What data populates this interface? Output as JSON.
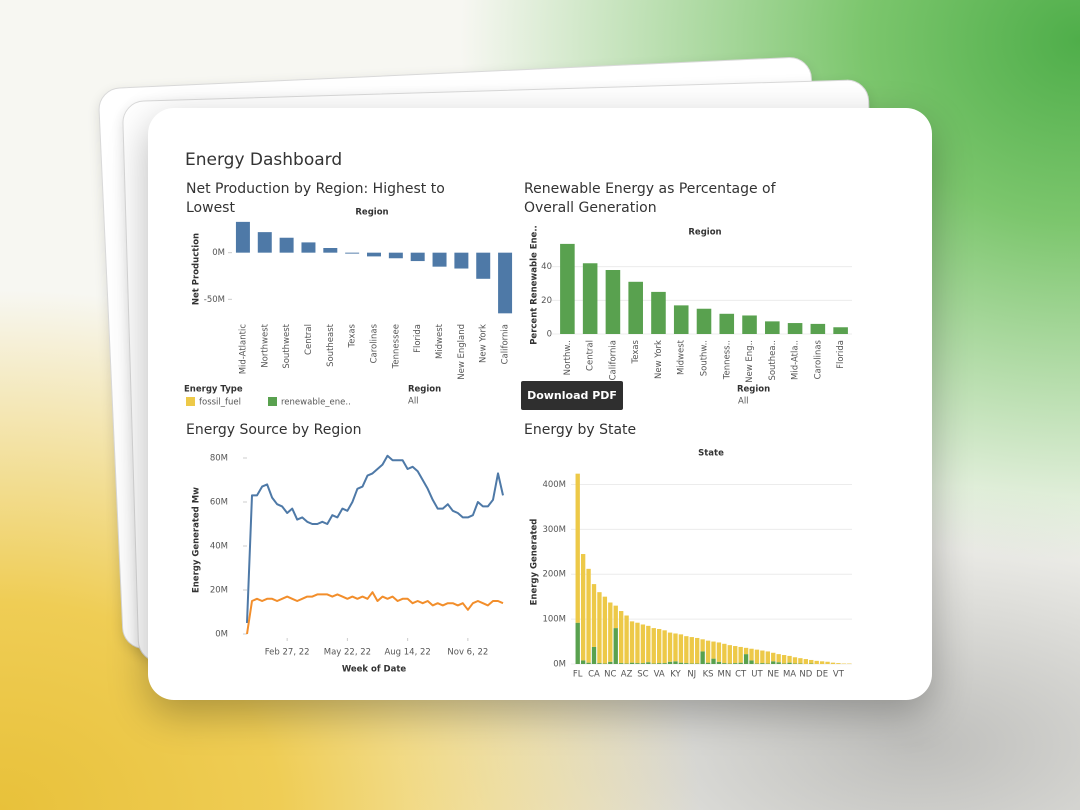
{
  "header": {
    "title": "Energy Dashboard"
  },
  "filters": [
    {
      "label": "Region",
      "value": "All"
    },
    {
      "label": "Region",
      "value": "All"
    }
  ],
  "button": {
    "label": "Download PDF"
  },
  "chart_data": [
    {
      "type": "bar",
      "title": "Net Production by Region: Highest to Lowest",
      "x_label": "Region",
      "y_label": "Net Production",
      "categories": [
        "Mid-Atlantic",
        "Northwest",
        "Southwest",
        "Central",
        "Southeast",
        "Texas",
        "Carolinas",
        "Tennessee",
        "Florida",
        "Midwest",
        "New England",
        "New York",
        "California"
      ],
      "values": [
        33000000,
        22000000,
        16000000,
        11000000,
        5000000,
        -1000000,
        -4000000,
        -6000000,
        -9000000,
        -15000000,
        -17000000,
        -28000000,
        -65000000
      ],
      "color": "#4e79a7",
      "ylim": [
        -70000000,
        35000000
      ],
      "yticks": [
        {
          "value": 0,
          "label": "0M"
        },
        {
          "value": -50000000,
          "label": "-50M"
        }
      ],
      "grid": false
    },
    {
      "type": "bar",
      "title": "Renewable Energy as Percentage of Overall Generation",
      "x_label": "Region",
      "y_label": "Percent Renewable Ene..",
      "categories": [
        "Northw..",
        "Central",
        "California",
        "Texas",
        "New York",
        "Midwest",
        "Southw..",
        "Tenness..",
        "New Eng..",
        "Southea..",
        "Mid-Atla..",
        "Carolinas",
        "Florida"
      ],
      "values": [
        53.5,
        42,
        38,
        31,
        25,
        17,
        15,
        12,
        11,
        7.5,
        6.5,
        6,
        4
      ],
      "color": "#59a14f",
      "ylim": [
        0,
        57
      ],
      "yticks": [
        0,
        20,
        40
      ],
      "grid": true
    },
    {
      "type": "line",
      "title": "Energy Source by Region",
      "x_label": "Week of Date",
      "y_label": "Energy Generated Mw",
      "x": [
        "2022-01-02",
        "2022-01-09",
        "2022-01-16",
        "2022-01-23",
        "2022-01-30",
        "2022-02-06",
        "2022-02-13",
        "2022-02-20",
        "2022-02-27",
        "2022-03-06",
        "2022-03-13",
        "2022-03-20",
        "2022-03-27",
        "2022-04-03",
        "2022-04-10",
        "2022-04-17",
        "2022-04-24",
        "2022-05-01",
        "2022-05-08",
        "2022-05-15",
        "2022-05-22",
        "2022-05-29",
        "2022-06-05",
        "2022-06-12",
        "2022-06-19",
        "2022-06-26",
        "2022-07-03",
        "2022-07-10",
        "2022-07-17",
        "2022-07-24",
        "2022-07-31",
        "2022-08-07",
        "2022-08-14",
        "2022-08-21",
        "2022-08-28",
        "2022-09-04",
        "2022-09-11",
        "2022-09-18",
        "2022-09-25",
        "2022-10-02",
        "2022-10-09",
        "2022-10-16",
        "2022-10-23",
        "2022-10-30",
        "2022-11-06",
        "2022-11-13",
        "2022-11-20",
        "2022-11-27",
        "2022-12-04",
        "2022-12-11",
        "2022-12-18",
        "2022-12-25"
      ],
      "series": [
        {
          "color": "#4e79a7",
          "values": [
            5000000,
            63000000,
            63000000,
            67000000,
            68000000,
            62000000,
            59000000,
            58000000,
            55000000,
            57000000,
            52000000,
            53000000,
            51000000,
            50000000,
            50000000,
            51000000,
            50000000,
            54000000,
            53000000,
            57000000,
            56000000,
            60000000,
            66000000,
            67000000,
            72000000,
            73000000,
            75000000,
            77000000,
            81000000,
            79000000,
            79000000,
            79000000,
            75000000,
            76000000,
            74000000,
            70000000,
            66000000,
            61000000,
            57000000,
            57000000,
            59000000,
            56000000,
            55000000,
            53000000,
            53000000,
            54000000,
            60000000,
            58000000,
            58000000,
            61000000,
            73000000,
            63000000
          ]
        },
        {
          "color": "#f28e2b",
          "values": [
            0,
            15000000,
            16000000,
            15000000,
            16000000,
            16000000,
            15000000,
            16000000,
            17000000,
            16000000,
            15000000,
            16000000,
            17000000,
            17000000,
            18000000,
            18000000,
            18000000,
            17000000,
            18000000,
            17000000,
            16000000,
            17000000,
            16000000,
            17000000,
            16000000,
            19000000,
            15000000,
            17000000,
            16000000,
            17000000,
            15000000,
            16000000,
            16000000,
            14000000,
            15000000,
            14000000,
            15000000,
            13000000,
            14000000,
            13000000,
            14000000,
            14000000,
            13000000,
            14000000,
            11000000,
            14000000,
            15000000,
            14000000,
            13000000,
            15000000,
            15000000,
            14000000
          ]
        }
      ],
      "xlim": [
        "2022-01-02",
        "2022-12-25"
      ],
      "xticks": [
        {
          "value": "2022-02-27",
          "label": "Feb 27, 22"
        },
        {
          "value": "2022-05-22",
          "label": "May 22, 22"
        },
        {
          "value": "2022-08-14",
          "label": "Aug 14, 22"
        },
        {
          "value": "2022-11-06",
          "label": "Nov 6, 22"
        }
      ],
      "ylim": [
        0,
        85000000
      ],
      "yticks": [
        {
          "value": 0,
          "label": "0M"
        },
        {
          "value": 20000000,
          "label": "20M"
        },
        {
          "value": 40000000,
          "label": "40M"
        },
        {
          "value": 60000000,
          "label": "60M"
        },
        {
          "value": 80000000,
          "label": "80M"
        }
      ],
      "grid": false
    },
    {
      "type": "stacked_bar",
      "title": "Energy by State",
      "x_label": "State",
      "y_label": "Energy Generated",
      "legend_title": "Energy Type",
      "categories": [
        "FL",
        null,
        null,
        "CA",
        null,
        null,
        "NC",
        null,
        null,
        "AZ",
        null,
        null,
        "SC",
        null,
        null,
        "VA",
        null,
        null,
        "KY",
        null,
        null,
        "NJ",
        null,
        null,
        "KS",
        null,
        null,
        "MN",
        null,
        null,
        "CT",
        null,
        null,
        "UT",
        null,
        null,
        "NE",
        null,
        null,
        "MA",
        null,
        null,
        "ND",
        null,
        null,
        "DE",
        null,
        null,
        "VT",
        null,
        null
      ],
      "series": [
        {
          "name": "fossil_fuel",
          "color": "#edc948",
          "values": [
            332000000,
            237000000,
            209000000,
            140000000,
            158000000,
            149000000,
            132000000,
            50000000,
            116000000,
            107000000,
            92000000,
            90000000,
            86000000,
            81000000,
            79000000,
            76000000,
            73000000,
            65000000,
            62000000,
            63000000,
            60000000,
            59000000,
            57000000,
            27000000,
            49000000,
            38000000,
            43000000,
            43000000,
            41000000,
            38000000,
            35000000,
            14000000,
            26000000,
            31000000,
            28000000,
            27000000,
            19000000,
            18000000,
            19000000,
            15000000,
            14000000,
            12000000,
            11000000,
            8000000,
            7000000,
            6000000,
            5000000,
            3000000,
            2000000,
            1000000,
            1000000
          ]
        },
        {
          "name": "renewable_ene..",
          "color": "#59a14f",
          "values": [
            92000000,
            8000000,
            3000000,
            38000000,
            2000000,
            1000000,
            5000000,
            80000000,
            2000000,
            1000000,
            3000000,
            2000000,
            2000000,
            4000000,
            1000000,
            2000000,
            2000000,
            5000000,
            6000000,
            3000000,
            2000000,
            1000000,
            1000000,
            28000000,
            3000000,
            12000000,
            5000000,
            2000000,
            1000000,
            2000000,
            3000000,
            22000000,
            8000000,
            1000000,
            2000000,
            1000000,
            6000000,
            4000000,
            1000000,
            3000000,
            1000000,
            1000000,
            0,
            1000000,
            0,
            0,
            0,
            0,
            0,
            0,
            0
          ]
        }
      ],
      "ylim": [
        0,
        450000000
      ],
      "yticks": [
        {
          "value": 0,
          "label": "0M"
        },
        {
          "value": 100000000,
          "label": "100M"
        },
        {
          "value": 200000000,
          "label": "200M"
        },
        {
          "value": 300000000,
          "label": "300M"
        },
        {
          "value": 400000000,
          "label": "400M"
        }
      ],
      "grid": true
    }
  ]
}
